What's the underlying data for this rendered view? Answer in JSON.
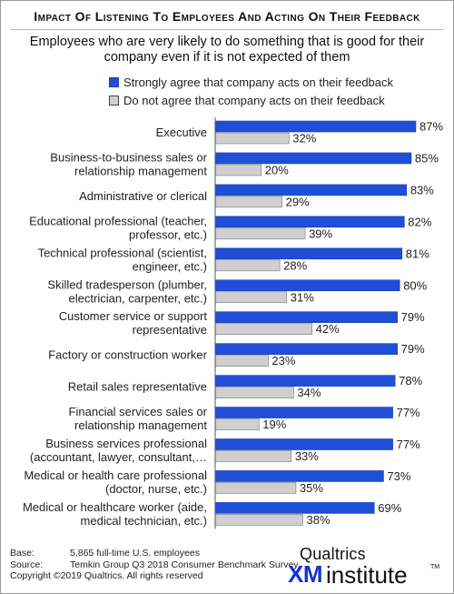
{
  "title": "Impact Of Listening To Employees And Acting On Their Feedback",
  "subtitle": "Employees who are very likely to do something that is good for their company even if it is not expected of them",
  "legend": [
    {
      "label": "Strongly agree that company acts on their feedback",
      "color": "#1f4fd6"
    },
    {
      "label": "Do not agree that company acts on their feedback",
      "color": "#cfcfcf"
    }
  ],
  "chart_data": {
    "type": "bar",
    "orientation": "horizontal",
    "categories": [
      [
        "Executive"
      ],
      [
        "Business-to-business sales or",
        "relationship management"
      ],
      [
        "Administrative or clerical"
      ],
      [
        "Educational professional (teacher,",
        "professor, etc.)"
      ],
      [
        "Technical professional (scientist,",
        "engineer, etc.)"
      ],
      [
        "Skilled tradesperson (plumber,",
        "electrician, carpenter, etc.)"
      ],
      [
        "Customer service or support",
        "representative"
      ],
      [
        "Factory or construction worker"
      ],
      [
        "Retail sales representative"
      ],
      [
        "Financial services sales or",
        "relationship management"
      ],
      [
        "Business services professional",
        "(accountant, lawyer, consultant,…"
      ],
      [
        "Medical or health care professional",
        "(doctor, nurse, etc.)"
      ],
      [
        "Medical or healthcare worker (aide,",
        "medical technician, etc.)"
      ]
    ],
    "series": [
      {
        "name": "Strongly agree that company acts on their feedback",
        "color": "#1f4fd6",
        "values": [
          87,
          85,
          83,
          82,
          81,
          80,
          79,
          79,
          78,
          77,
          77,
          73,
          69
        ]
      },
      {
        "name": "Do not agree that company acts on their feedback",
        "color": "#cfcfcf",
        "values": [
          32,
          20,
          29,
          39,
          28,
          31,
          42,
          23,
          34,
          19,
          33,
          35,
          38
        ]
      }
    ],
    "value_suffix": "%",
    "xlim": [
      0,
      100
    ],
    "grid": false,
    "legend_position": "top"
  },
  "footer": {
    "base_label": "Base:",
    "base_value": "5,865 full-time U.S. employees",
    "source_label": "Source:",
    "source_value": "Temkin Group Q3 2018 Consumer Benchmark Survey",
    "copyright": "Copyright ©2019 Qualtrics. All rights reserved"
  },
  "brand": {
    "name": "Qualtrics",
    "xm": "XM",
    "institute": "institute",
    "tm": "TM"
  }
}
